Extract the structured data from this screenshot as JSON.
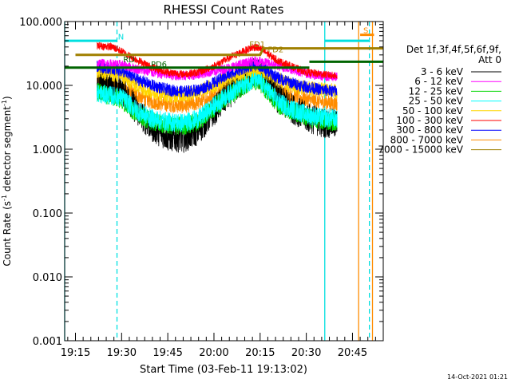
{
  "chart_data": {
    "type": "line",
    "title": "RHESSI Count Rates",
    "xlabel": "Start Time (03-Feb-11 19:13:02)",
    "ylabel_main": "Count Rate (s",
    "ylabel_sup1": "-1",
    "ylabel_mid": " detector segment",
    "ylabel_sup2": "-1",
    "ylabel_end": ")",
    "x_range_minutes": [
      -3.5,
      100.0
    ],
    "x_ticks": [
      {
        "t": 0,
        "label": "19:15"
      },
      {
        "t": 15,
        "label": "19:30"
      },
      {
        "t": 30,
        "label": "19:45"
      },
      {
        "t": 45,
        "label": "20:00"
      },
      {
        "t": 60,
        "label": "20:15"
      },
      {
        "t": 75,
        "label": "20:30"
      },
      {
        "t": 90,
        "label": "20:45"
      }
    ],
    "y_scale": "log",
    "y_range": [
      0.001,
      100
    ],
    "y_ticks": [
      {
        "v": 100,
        "label": "100.000"
      },
      {
        "v": 10,
        "label": "10.000"
      },
      {
        "v": 1,
        "label": "1.000"
      },
      {
        "v": 0.1,
        "label": "0.100"
      },
      {
        "v": 0.01,
        "label": "0.010"
      },
      {
        "v": 0.001,
        "label": "0.001"
      }
    ],
    "legend_header": [
      "Det 1f,3f,4f,5f,6f,9f,",
      "Att 0"
    ],
    "legend_placement": "right",
    "series": [
      {
        "name": "3 - 6 keV",
        "color": "#000000",
        "points": [
          [
            7,
            10.5
          ],
          [
            15,
            8.5
          ],
          [
            20,
            4.0
          ],
          [
            25,
            2.2
          ],
          [
            30,
            1.6
          ],
          [
            35,
            1.5
          ],
          [
            40,
            2.0
          ],
          [
            45,
            4.0
          ],
          [
            50,
            7.5
          ],
          [
            55,
            12.0
          ],
          [
            58,
            16.0
          ],
          [
            60,
            15.0
          ],
          [
            63,
            10.0
          ],
          [
            66,
            6.0
          ],
          [
            70,
            4.5
          ],
          [
            75,
            3.2
          ],
          [
            80,
            2.6
          ],
          [
            85,
            2.5
          ]
        ]
      },
      {
        "name": "6 - 12 keV",
        "color": "#ff00ff",
        "points": [
          [
            7,
            22
          ],
          [
            15,
            21
          ],
          [
            20,
            18
          ],
          [
            25,
            16
          ],
          [
            30,
            14.5
          ],
          [
            35,
            14
          ],
          [
            40,
            15
          ],
          [
            45,
            16.5
          ],
          [
            50,
            19
          ],
          [
            55,
            22
          ],
          [
            58,
            24
          ],
          [
            60,
            23.5
          ],
          [
            63,
            22
          ],
          [
            66,
            20
          ],
          [
            70,
            18
          ],
          [
            75,
            15.5
          ],
          [
            80,
            14
          ],
          [
            85,
            13.5
          ]
        ]
      },
      {
        "name": "12 - 25 keV",
        "color": "#00d700",
        "points": [
          [
            7,
            8.0
          ],
          [
            15,
            6.0
          ],
          [
            20,
            3.5
          ],
          [
            25,
            2.7
          ],
          [
            30,
            2.4
          ],
          [
            35,
            2.3
          ],
          [
            40,
            2.7
          ],
          [
            45,
            4.5
          ],
          [
            50,
            7.0
          ],
          [
            55,
            10.0
          ],
          [
            58,
            12.0
          ],
          [
            60,
            11.0
          ],
          [
            63,
            7.5
          ],
          [
            66,
            5.0
          ],
          [
            70,
            4.0
          ],
          [
            75,
            3.2
          ],
          [
            80,
            2.8
          ],
          [
            85,
            2.7
          ]
        ]
      },
      {
        "name": "25 - 50 keV",
        "color": "#00ffff",
        "points": [
          [
            7,
            7.5
          ],
          [
            15,
            6.5
          ],
          [
            20,
            4.0
          ],
          [
            25,
            3.0
          ],
          [
            30,
            2.7
          ],
          [
            35,
            2.6
          ],
          [
            40,
            3.0
          ],
          [
            45,
            4.8
          ],
          [
            50,
            7.5
          ],
          [
            55,
            10.5
          ],
          [
            58,
            12.5
          ],
          [
            60,
            11.5
          ],
          [
            63,
            8.0
          ],
          [
            66,
            5.5
          ],
          [
            70,
            4.3
          ],
          [
            75,
            3.5
          ],
          [
            80,
            3.1
          ],
          [
            85,
            3.0
          ]
        ]
      },
      {
        "name": "50 - 100 keV",
        "color": "#ffd700",
        "points": [
          [
            7,
            17
          ],
          [
            15,
            14
          ],
          [
            20,
            10
          ],
          [
            25,
            8
          ],
          [
            30,
            7
          ],
          [
            35,
            7
          ],
          [
            40,
            8
          ],
          [
            45,
            10
          ],
          [
            50,
            13
          ],
          [
            55,
            16
          ],
          [
            58,
            18
          ],
          [
            60,
            17.5
          ],
          [
            63,
            15
          ],
          [
            66,
            12
          ],
          [
            70,
            10
          ],
          [
            75,
            9
          ],
          [
            80,
            8.5
          ],
          [
            85,
            8
          ]
        ]
      },
      {
        "name": "100 - 300 keV",
        "color": "#ff0000",
        "points": [
          [
            7,
            42
          ],
          [
            12,
            40
          ],
          [
            15,
            34
          ],
          [
            20,
            25
          ],
          [
            25,
            19
          ],
          [
            30,
            16
          ],
          [
            35,
            15
          ],
          [
            40,
            16
          ],
          [
            45,
            20
          ],
          [
            50,
            27
          ],
          [
            55,
            35
          ],
          [
            58,
            40
          ],
          [
            60,
            38
          ],
          [
            63,
            30
          ],
          [
            66,
            24
          ],
          [
            70,
            20
          ],
          [
            75,
            16
          ],
          [
            80,
            15
          ],
          [
            85,
            14
          ]
        ]
      },
      {
        "name": "300 - 800 keV",
        "color": "#0000ff",
        "points": [
          [
            7,
            20
          ],
          [
            15,
            17
          ],
          [
            20,
            12.5
          ],
          [
            25,
            10
          ],
          [
            30,
            8.5
          ],
          [
            35,
            8
          ],
          [
            40,
            8.5
          ],
          [
            45,
            11
          ],
          [
            50,
            15
          ],
          [
            55,
            19
          ],
          [
            58,
            21
          ],
          [
            60,
            20
          ],
          [
            63,
            16
          ],
          [
            66,
            13
          ],
          [
            70,
            11
          ],
          [
            75,
            9.5
          ],
          [
            80,
            8.5
          ],
          [
            85,
            8
          ]
        ]
      },
      {
        "name": "800 - 7000 keV",
        "color": "#ff8c00",
        "points": [
          [
            7,
            12.5
          ],
          [
            15,
            9.5
          ],
          [
            20,
            7
          ],
          [
            25,
            5.5
          ],
          [
            30,
            5
          ],
          [
            35,
            4.8
          ],
          [
            40,
            5.3
          ],
          [
            45,
            7
          ],
          [
            50,
            10
          ],
          [
            55,
            13.5
          ],
          [
            58,
            15
          ],
          [
            60,
            14.5
          ],
          [
            63,
            11
          ],
          [
            66,
            8.5
          ],
          [
            70,
            7
          ],
          [
            75,
            6
          ],
          [
            80,
            5.5
          ],
          [
            85,
            5.2
          ]
        ]
      },
      {
        "name": "7000 - 15000 keV",
        "color": "#a08000",
        "points": [
          [
            0,
            30
          ],
          [
            15,
            30
          ],
          [
            30,
            30
          ],
          [
            45,
            30
          ],
          [
            60,
            30
          ],
          [
            61,
            38
          ],
          [
            75,
            38
          ],
          [
            90,
            38
          ],
          [
            100,
            38
          ]
        ]
      }
    ],
    "flag_lines": [
      {
        "label": "N",
        "color": "#00e0e0",
        "points": [
          [
            -3.5,
            50
          ],
          [
            13.5,
            50
          ]
        ]
      },
      {
        "label": "N",
        "color": "#00e0e0",
        "points": [
          [
            81,
            50
          ],
          [
            95.5,
            50
          ]
        ]
      },
      {
        "label": "S",
        "color": "#ff8c00",
        "points": [
          [
            92.5,
            62
          ],
          [
            97,
            62
          ]
        ]
      },
      {
        "label": "",
        "color": "#006400",
        "points": [
          [
            -3.5,
            19
          ],
          [
            76,
            19
          ]
        ]
      },
      {
        "label": "",
        "color": "#006400",
        "points": [
          [
            76,
            23.5
          ],
          [
            100,
            23.5
          ]
        ]
      }
    ],
    "annotations": [
      {
        "label": "N",
        "t": 13.8,
        "v": 52,
        "color": "#00e0e0"
      },
      {
        "label": "S",
        "t": 93.5,
        "v": 66,
        "color": "#ff8c00"
      },
      {
        "label": "RD",
        "t": 15.5,
        "v": 23,
        "color": "#006400"
      },
      {
        "label": "PD6",
        "t": 24.5,
        "v": 19.5,
        "color": "#006400"
      },
      {
        "label": "FD1",
        "t": 56.5,
        "v": 40,
        "color": "#a08000"
      },
      {
        "label": "FD2",
        "t": 62.5,
        "v": 33,
        "color": "#a08000"
      }
    ],
    "vertical_lines": [
      {
        "t": -3.5,
        "color": "#00e0e0",
        "style": "solid"
      },
      {
        "t": 13.5,
        "color": "#00e0e0",
        "style": "dashed"
      },
      {
        "t": 81,
        "color": "#00e0e0",
        "style": "solid"
      },
      {
        "t": 92,
        "color": "#ff8c00",
        "style": "solid"
      },
      {
        "t": 95.5,
        "color": "#00e0e0",
        "style": "dashed"
      },
      {
        "t": 96.5,
        "color": "#ff8c00",
        "style": "solid"
      }
    ],
    "timestamp": "14-Oct-2021 01:21"
  }
}
